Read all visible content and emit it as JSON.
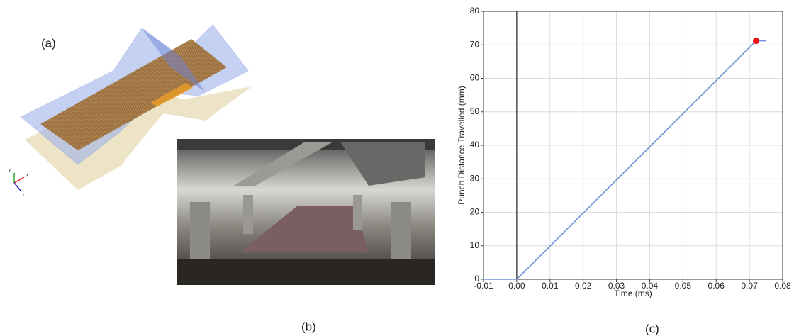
{
  "panels": {
    "a": "(a)",
    "b": "(b)",
    "c": "(c)"
  },
  "triad": {
    "y": "y",
    "x": "x",
    "z": "z"
  },
  "chart_data": {
    "type": "line",
    "x_label": "Time (ms)",
    "y_label": "Punch Distance Travelled (mm)",
    "x": [
      -0.01,
      0,
      0.072,
      0.075
    ],
    "series": [
      {
        "color": "#6f8fd8",
        "values": [
          0,
          0,
          71.2,
          71.2
        ]
      }
    ],
    "marker": {
      "x": 0.072,
      "y": 71.2,
      "color": "#ee1111"
    },
    "xlim": [
      -0.01,
      0.08
    ],
    "ylim": [
      0,
      80
    ],
    "xticks": [
      -0.01,
      {
        "value": 0,
        "label": "0.00"
      },
      0.01,
      0.02,
      0.03,
      0.04,
      0.05,
      0.06,
      0.07,
      0.08
    ],
    "yticks": [
      0,
      10,
      20,
      30,
      40,
      50,
      60,
      70,
      80
    ],
    "grid": true
  }
}
